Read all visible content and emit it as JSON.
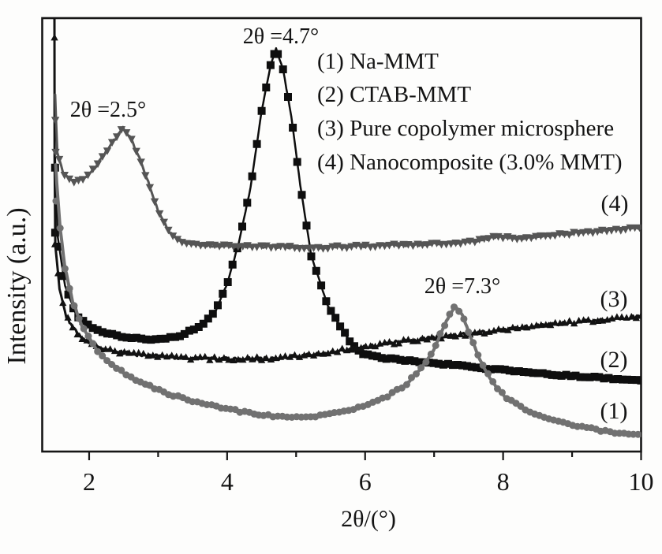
{
  "chart_data": {
    "type": "line",
    "title": "",
    "xlabel": "2θ/(°)",
    "ylabel": "Intensity (a.u.)",
    "grid": false,
    "frame_color": "#161616",
    "text_color": "#141414",
    "x_axis": {
      "min": 1.32,
      "max": 10,
      "major_ticks": [
        2,
        4,
        6,
        8,
        10
      ],
      "tick_labels": [
        "2",
        "4",
        "6",
        "8",
        "10"
      ],
      "minor_ticks": [
        3,
        5,
        7,
        9
      ]
    },
    "y_axis": {
      "min": 0,
      "max": 100,
      "units": "a.u.",
      "ticks": []
    },
    "legend": {
      "position": "top-right",
      "items": [
        "(1) Na-MMT",
        "(2) CTAB-MMT",
        "(3) Pure copolymer microsphere",
        "(4) Nanocomposite (3.0% MMT)"
      ]
    },
    "annotations": [
      {
        "label": "2θ =2.5°",
        "x": 2.3,
        "y": 79.2,
        "series": "Nanocomposite (3.0% MMT)"
      },
      {
        "label": "2θ =4.7°",
        "x": 4.81,
        "y": 96.0,
        "series": "CTAB-MMT"
      },
      {
        "label": "2θ =7.3°",
        "x": 7.42,
        "y": 38.4,
        "series": "Na-MMT"
      }
    ],
    "series": [
      {
        "curve_label": "(2)",
        "name": "CTAB-MMT",
        "color": "#0e0e0e",
        "marker": "square",
        "peak_2theta": 4.7,
        "style": {
          "marker_size": 10,
          "marker_step_px": 4.5,
          "line_width": 2.5,
          "noise": 0.9
        },
        "extra_markers": [
          [
            1.506,
            65.5
          ],
          [
            1.508,
            50.5
          ]
        ],
        "points": [
          [
            1.505,
            69
          ],
          [
            1.51,
            65.1
          ],
          [
            1.545,
            49.6
          ],
          [
            1.65,
            38.4
          ],
          [
            1.82,
            31.1
          ],
          [
            2.1,
            28.0
          ],
          [
            2.45,
            26.5
          ],
          [
            2.85,
            25.8
          ],
          [
            3.27,
            26.4
          ],
          [
            3.61,
            28.9
          ],
          [
            3.84,
            32.7
          ],
          [
            4.01,
            39.1
          ],
          [
            4.17,
            48.2
          ],
          [
            4.34,
            60.9
          ],
          [
            4.5,
            78.7
          ],
          [
            4.63,
            89.1
          ],
          [
            4.71,
            92.9
          ],
          [
            4.81,
            88.2
          ],
          [
            4.93,
            77.3
          ],
          [
            5.06,
            61.5
          ],
          [
            5.22,
            45.1
          ],
          [
            5.46,
            33.6
          ],
          [
            5.66,
            28.4
          ],
          [
            5.8,
            24.9
          ],
          [
            5.95,
            22.7
          ],
          [
            6.24,
            21.6
          ],
          [
            6.67,
            20.9
          ],
          [
            7.25,
            20.0
          ],
          [
            7.82,
            19.1
          ],
          [
            8.39,
            18.2
          ],
          [
            8.96,
            17.5
          ],
          [
            9.53,
            16.9
          ],
          [
            10.0,
            16.5
          ]
        ]
      },
      {
        "curve_label": "(3)",
        "name": "Pure copolymer microsphere",
        "color": "#121212",
        "marker": "triangle-up",
        "peak_2theta": null,
        "style": {
          "marker_size": 8,
          "marker_step_px": 4.5,
          "line_width": 3,
          "noise": 2.2
        },
        "extra_markers": [
          [
            1.498,
            95.5
          ],
          [
            1.503,
            47.8
          ]
        ],
        "points": [
          [
            1.497,
            100
          ],
          [
            1.5,
            68
          ],
          [
            1.51,
            47.8
          ],
          [
            1.57,
            37.8
          ],
          [
            1.67,
            31.1
          ],
          [
            1.83,
            27.1
          ],
          [
            2.06,
            24.4
          ],
          [
            2.35,
            23.1
          ],
          [
            2.81,
            22.2
          ],
          [
            3.38,
            21.6
          ],
          [
            4.07,
            21.3
          ],
          [
            4.75,
            21.5
          ],
          [
            5.44,
            22.8
          ],
          [
            6.01,
            24.2
          ],
          [
            6.58,
            25.5
          ],
          [
            7.15,
            26.5
          ],
          [
            7.73,
            27.6
          ],
          [
            8.3,
            28.7
          ],
          [
            8.87,
            29.6
          ],
          [
            9.44,
            30.4
          ],
          [
            10.0,
            31.1
          ]
        ]
      },
      {
        "curve_label": "(4)",
        "name": "Nanocomposite (3.0% MMT)",
        "color": "#555555",
        "marker": "triangle-down",
        "peak_2theta": 2.5,
        "style": {
          "marker_size": 9,
          "marker_step_px": 5,
          "line_width": 3,
          "noise": 1.6
        },
        "extra_markers": [
          [
            1.51,
            76.5
          ],
          [
            1.514,
            69.1
          ]
        ],
        "points": [
          [
            1.508,
            82.4
          ],
          [
            1.52,
            76.5
          ],
          [
            1.54,
            69.1
          ],
          [
            1.62,
            64.2
          ],
          [
            1.76,
            62.4
          ],
          [
            1.91,
            62.9
          ],
          [
            2.08,
            65.5
          ],
          [
            2.24,
            69.1
          ],
          [
            2.38,
            72.2
          ],
          [
            2.49,
            74.7
          ],
          [
            2.59,
            72.7
          ],
          [
            2.73,
            67.8
          ],
          [
            2.88,
            61.1
          ],
          [
            3.02,
            54.7
          ],
          [
            3.17,
            50.4
          ],
          [
            3.39,
            48.0
          ],
          [
            3.82,
            47.5
          ],
          [
            4.5,
            47.3
          ],
          [
            5.3,
            47.1
          ],
          [
            6.1,
            47.5
          ],
          [
            6.9,
            47.8
          ],
          [
            7.59,
            48.5
          ],
          [
            7.93,
            49.6
          ],
          [
            8.27,
            49.3
          ],
          [
            8.73,
            50.0
          ],
          [
            9.3,
            50.7
          ],
          [
            10.0,
            51.8
          ]
        ]
      },
      {
        "curve_label": "(1)",
        "name": "Na-MMT",
        "color": "#717171",
        "marker": "circle",
        "peak_2theta": 7.3,
        "style": {
          "marker_size": 9,
          "marker_step_px": 5,
          "line_width": 4,
          "noise": 1.3
        },
        "extra_markers": [
          [
            1.52,
            57.8
          ]
        ],
        "points": [
          [
            1.515,
            66
          ],
          [
            1.53,
            62
          ],
          [
            1.58,
            51.5
          ],
          [
            1.65,
            42.4
          ],
          [
            1.76,
            34.7
          ],
          [
            1.9,
            28.9
          ],
          [
            2.1,
            23.5
          ],
          [
            2.35,
            19.8
          ],
          [
            2.7,
            16.2
          ],
          [
            3.15,
            13.3
          ],
          [
            3.73,
            10.7
          ],
          [
            4.3,
            8.9
          ],
          [
            4.87,
            7.8
          ],
          [
            5.44,
            8.4
          ],
          [
            5.9,
            10.2
          ],
          [
            6.3,
            12.5
          ],
          [
            6.58,
            15.3
          ],
          [
            6.81,
            19.1
          ],
          [
            6.98,
            23.1
          ],
          [
            7.13,
            28.5
          ],
          [
            7.25,
            32.2
          ],
          [
            7.31,
            33.6
          ],
          [
            7.41,
            31.5
          ],
          [
            7.52,
            26.7
          ],
          [
            7.66,
            21.3
          ],
          [
            7.83,
            16.5
          ],
          [
            8.03,
            12.5
          ],
          [
            8.3,
            9.8
          ],
          [
            8.64,
            7.6
          ],
          [
            9.1,
            5.8
          ],
          [
            9.55,
            4.5
          ],
          [
            10.0,
            3.8
          ]
        ]
      }
    ]
  }
}
